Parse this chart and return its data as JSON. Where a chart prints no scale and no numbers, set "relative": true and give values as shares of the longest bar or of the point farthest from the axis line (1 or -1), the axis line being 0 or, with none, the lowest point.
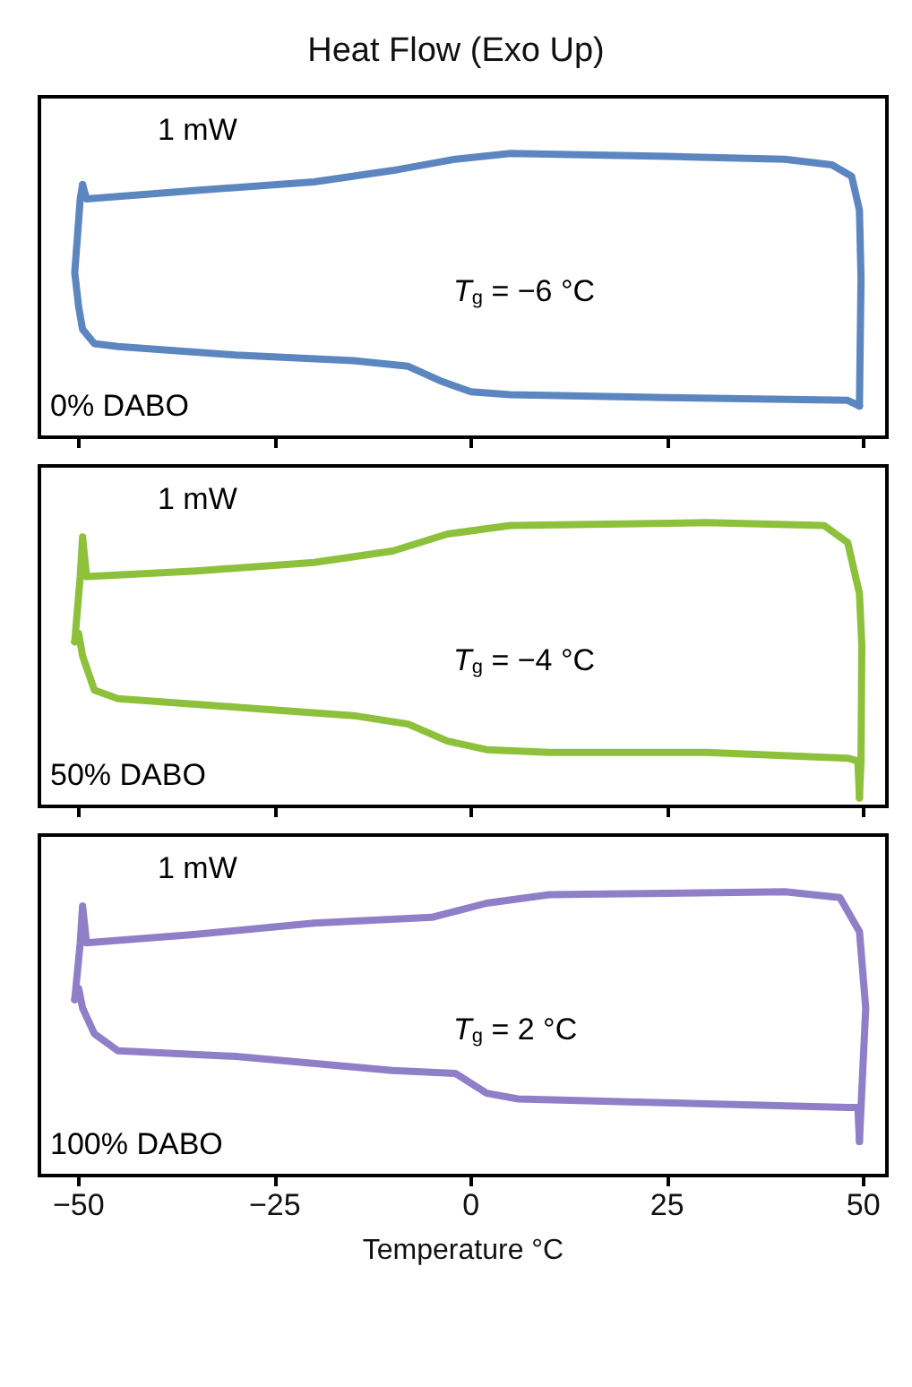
{
  "chart_data": [
    {
      "type": "line",
      "title": "Heat Flow (Exo Up)",
      "relative": true,
      "xlim": [
        -55,
        53
      ],
      "xticks": [
        -50,
        -25,
        0,
        25,
        50
      ],
      "tick_labels": false,
      "marker": "none",
      "line_style": "solid",
      "annotations": [
        "1 mW",
        "0% DABO",
        "T$_{g}$ = −6 °C"
      ],
      "series": [
        {
          "color": "#5b86c0",
          "x": [
            -49.5,
            -49.8,
            -50.5,
            -50,
            -49.5,
            -48,
            -45,
            -30,
            -15,
            -8,
            -4,
            0,
            5,
            25,
            48,
            49.5
          ],
          "values": [
            0.89,
            0.84,
            0.58,
            0.46,
            0.38,
            0.33,
            0.32,
            0.29,
            0.27,
            0.25,
            0.2,
            0.16,
            0.15,
            0.14,
            0.13,
            0.11
          ]
        },
        {
          "color": "#5b86c0",
          "x": [
            49.5,
            49.7,
            49.5,
            48.5,
            46,
            40,
            25,
            5,
            -2,
            -10,
            -20,
            -35,
            -49,
            -49.5
          ],
          "values": [
            0.11,
            0.56,
            0.8,
            0.92,
            0.96,
            0.98,
            0.99,
            1.0,
            0.98,
            0.94,
            0.9,
            0.87,
            0.84,
            0.89
          ]
        }
      ]
    },
    {
      "type": "line",
      "relative": true,
      "xlim": [
        -55,
        53
      ],
      "xticks": [
        -50,
        -25,
        0,
        25,
        50
      ],
      "tick_labels": false,
      "marker": "none",
      "line_style": "solid",
      "annotations": [
        "1 mW",
        "50% DABO",
        "T$_{g}$ = −4 °C"
      ],
      "series": [
        {
          "color": "#8dc13c",
          "x": [
            -50.5,
            -50,
            -49.5,
            -48,
            -45,
            -30,
            -15,
            -8,
            -3,
            2,
            10,
            30,
            48,
            49.3,
            49.5
          ],
          "values": [
            0.58,
            0.61,
            0.53,
            0.41,
            0.38,
            0.35,
            0.32,
            0.29,
            0.23,
            0.2,
            0.19,
            0.19,
            0.17,
            0.16,
            0.03
          ]
        },
        {
          "color": "#8dc13c",
          "x": [
            49.5,
            49.7,
            49.8,
            49.5,
            48,
            45,
            30,
            5,
            -3,
            -10,
            -20,
            -35,
            -49,
            -49.5,
            -49.8,
            -50.5
          ],
          "values": [
            0.03,
            0.16,
            0.57,
            0.75,
            0.93,
            0.99,
            1.0,
            0.99,
            0.96,
            0.9,
            0.86,
            0.83,
            0.81,
            0.95,
            0.81,
            0.58
          ]
        }
      ]
    },
    {
      "type": "line",
      "relative": true,
      "xlim": [
        -55,
        53
      ],
      "xticks": [
        -50,
        -25,
        0,
        25,
        50
      ],
      "tick_labels": "x",
      "xlabel": "Temperature °C",
      "marker": "none",
      "line_style": "solid",
      "annotations": [
        "1 mW",
        "100% DABO",
        "T$_{g}$ = 2 °C"
      ],
      "series": [
        {
          "color": "#8f7fc8",
          "x": [
            -50.5,
            -50,
            -49.5,
            -48,
            -45,
            -30,
            -10,
            -2,
            2,
            6,
            20,
            48,
            49.3,
            49.5
          ],
          "values": [
            0.62,
            0.66,
            0.59,
            0.5,
            0.44,
            0.42,
            0.37,
            0.36,
            0.29,
            0.27,
            0.26,
            0.24,
            0.24,
            0.12
          ]
        },
        {
          "color": "#8f7fc8",
          "x": [
            49.5,
            49.7,
            50.3,
            49.5,
            47,
            40,
            10,
            2,
            -5,
            -20,
            -35,
            -49,
            -49.5,
            -49.8,
            -50.5
          ],
          "values": [
            0.12,
            0.24,
            0.59,
            0.86,
            0.98,
            1.0,
            0.99,
            0.96,
            0.91,
            0.89,
            0.85,
            0.82,
            0.95,
            0.82,
            0.62
          ]
        }
      ]
    }
  ]
}
